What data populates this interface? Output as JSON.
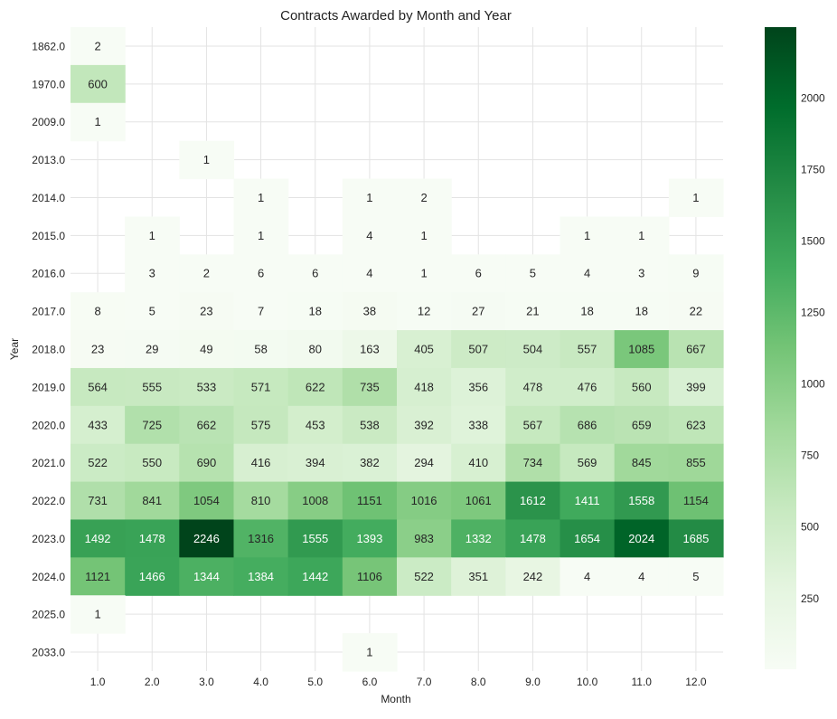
{
  "chart_data": {
    "type": "heatmap",
    "title": "Contracts Awarded by Month and Year",
    "xlabel": "Month",
    "ylabel": "Year",
    "x_categories": [
      "1.0",
      "2.0",
      "3.0",
      "4.0",
      "5.0",
      "6.0",
      "7.0",
      "8.0",
      "9.0",
      "10.0",
      "11.0",
      "12.0"
    ],
    "y_categories": [
      "1862.0",
      "1970.0",
      "2009.0",
      "2013.0",
      "2014.0",
      "2015.0",
      "2016.0",
      "2017.0",
      "2018.0",
      "2019.0",
      "2020.0",
      "2021.0",
      "2022.0",
      "2023.0",
      "2024.0",
      "2025.0",
      "2033.0"
    ],
    "values": [
      [
        2,
        null,
        null,
        null,
        null,
        null,
        null,
        null,
        null,
        null,
        null,
        null
      ],
      [
        600,
        null,
        null,
        null,
        null,
        null,
        null,
        null,
        null,
        null,
        null,
        null
      ],
      [
        1,
        null,
        null,
        null,
        null,
        null,
        null,
        null,
        null,
        null,
        null,
        null
      ],
      [
        null,
        null,
        1,
        null,
        null,
        null,
        null,
        null,
        null,
        null,
        null,
        null
      ],
      [
        null,
        null,
        null,
        1,
        null,
        1,
        2,
        null,
        null,
        null,
        null,
        1
      ],
      [
        null,
        1,
        null,
        1,
        null,
        4,
        1,
        null,
        null,
        1,
        1,
        null
      ],
      [
        null,
        3,
        2,
        6,
        6,
        4,
        1,
        6,
        5,
        4,
        3,
        9
      ],
      [
        8,
        5,
        23,
        7,
        18,
        38,
        12,
        27,
        21,
        18,
        18,
        22
      ],
      [
        23,
        29,
        49,
        58,
        80,
        163,
        405,
        507,
        504,
        557,
        1085,
        667
      ],
      [
        564,
        555,
        533,
        571,
        622,
        735,
        418,
        356,
        478,
        476,
        560,
        399
      ],
      [
        433,
        725,
        662,
        575,
        453,
        538,
        392,
        338,
        567,
        686,
        659,
        623
      ],
      [
        522,
        550,
        690,
        416,
        394,
        382,
        294,
        410,
        734,
        569,
        845,
        855
      ],
      [
        731,
        841,
        1054,
        810,
        1008,
        1151,
        1016,
        1061,
        1612,
        1411,
        1558,
        1154
      ],
      [
        1492,
        1478,
        2246,
        1316,
        1555,
        1393,
        983,
        1332,
        1478,
        1654,
        2024,
        1685
      ],
      [
        1121,
        1466,
        1344,
        1384,
        1442,
        1106,
        522,
        351,
        242,
        4,
        4,
        5
      ],
      [
        1,
        null,
        null,
        null,
        null,
        null,
        null,
        null,
        null,
        null,
        null,
        null
      ],
      [
        null,
        null,
        null,
        null,
        null,
        1,
        null,
        null,
        null,
        null,
        null,
        null
      ]
    ],
    "value_range": [
      1,
      2246
    ],
    "colorbar_ticks": [
      250,
      500,
      750,
      1000,
      1250,
      1500,
      1750,
      2000
    ],
    "colormap": "Greens",
    "colormap_stops": [
      "#f7fcf5",
      "#e5f5e0",
      "#c7e9c0",
      "#a1d99b",
      "#74c476",
      "#41ab5d",
      "#238b45",
      "#006d2c",
      "#00441b"
    ],
    "grid": true,
    "colorbar_placement": "right"
  }
}
